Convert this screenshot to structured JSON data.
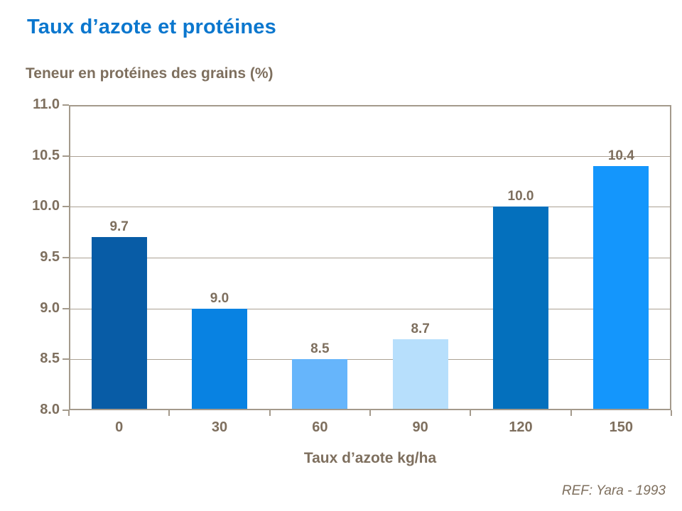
{
  "slide": {
    "title": "Taux d’azote et protéines",
    "footer_ref": "REF: Yara - 1993"
  },
  "chart_data": {
    "type": "bar",
    "title": "Teneur en protéines des grains (%)",
    "xlabel": "Taux d’azote kg/ha",
    "ylabel": "Teneur en protéines des grains (%)",
    "categories": [
      "0",
      "30",
      "60",
      "90",
      "120",
      "150"
    ],
    "values": [
      9.7,
      9.0,
      8.5,
      8.7,
      10.0,
      10.4
    ],
    "value_labels": [
      "9.7",
      "9.0",
      "8.5",
      "8.7",
      "10.0",
      "10.4"
    ],
    "ylim": [
      8.0,
      11.0
    ],
    "ytick_step": 0.5,
    "ytick_labels": [
      "8.0",
      "8.5",
      "9.0",
      "9.5",
      "10.0",
      "10.5",
      "11.0"
    ],
    "grid": true,
    "legend": false,
    "bar_colors": [
      "#085ca6",
      "#0882e2",
      "#66b5fb",
      "#b7dffc",
      "#0470bd",
      "#1496fc"
    ],
    "colors": {
      "title_blue": "#0b77ce",
      "label_taupe": "#7e6f5e",
      "gridline": "#aba193",
      "axis_border": "#a49a8c"
    }
  }
}
